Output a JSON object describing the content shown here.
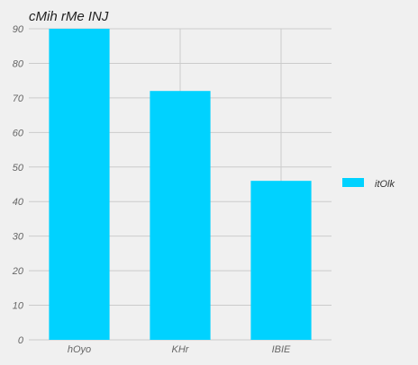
{
  "chart_data": {
    "type": "bar",
    "title": "cMih rMe INJ",
    "categories": [
      "hOyo",
      "KHr",
      "IBIE"
    ],
    "series": [
      {
        "name": "itOlk",
        "values": [
          90,
          72,
          46
        ],
        "color": "#00d2ff"
      }
    ],
    "ylim": [
      0,
      90
    ],
    "yticks": [
      0,
      10,
      20,
      30,
      40,
      50,
      60,
      70,
      80,
      90
    ],
    "grid": true,
    "legend_position": "right",
    "background_color": "#f0f0f0",
    "grid_color": "#cbcbcb"
  }
}
